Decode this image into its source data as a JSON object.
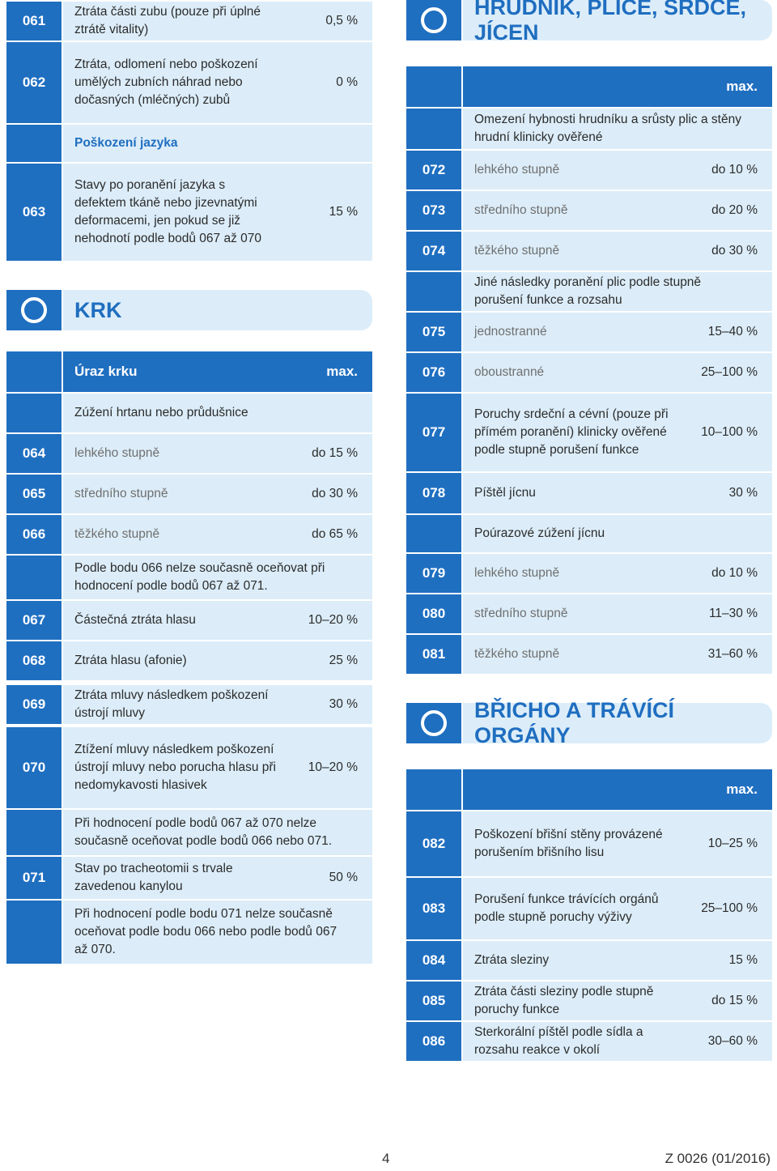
{
  "blocks": [
    {
      "rows": [
        {
          "code": "061",
          "text": "Ztráta části zubu (pouze při úplné ztrátě vitality)",
          "value": "0,5 %"
        },
        {
          "code": "062",
          "text": "Ztráta, odlomení nebo poškození umělých zubních náhrad nebo dočasných (mléčných) zubů",
          "value": "0 %"
        },
        {
          "text": "Poškození jazyka",
          "emphasis": true
        },
        {
          "code": "063",
          "text": "Stavy po poranění jazyka s defektem tkáně nebo jizevnatými deformacemi, jen pokud se již nehodnotí podle bodů 067 až 070",
          "value": "15 %"
        }
      ]
    },
    {
      "title": "KRK",
      "header": {
        "label": "Úraz krku",
        "max": "max."
      },
      "rows": [
        {
          "text": "Zúžení hrtanu nebo průdušnice"
        },
        {
          "code": "064",
          "text": "lehkého stupně",
          "value": "do 15 %",
          "muted": true
        },
        {
          "code": "065",
          "text": "středního stupně",
          "value": "do 30 %",
          "muted": true
        },
        {
          "code": "066",
          "text": "těžkého stupně",
          "value": "do 65 %",
          "muted": true
        },
        {
          "text": "Podle bodu 066 nelze současně oceňovat při hodnocení podle bodů 067 až 071."
        },
        {
          "code": "067",
          "text": "Částečná ztráta hlasu",
          "value": "10–20 %"
        },
        {
          "code": "068",
          "text": "Ztráta hlasu (afonie)",
          "value": "25 %"
        },
        {
          "code": "069",
          "text": "Ztráta mluvy následkem poškození ústrojí mluvy",
          "value": "30 %"
        },
        {
          "code": "070",
          "text": "Ztížení mluvy následkem poškození ústrojí mluvy nebo porucha hlasu při nedomykavosti hlasivek",
          "value": "10–20 %"
        },
        {
          "text": "Při hodnocení podle bodů 067 až 070 nelze současně oceňovat podle bodů 066 nebo 071."
        },
        {
          "code": "071",
          "text": "Stav po tracheotomii s trvale zavedenou kanylou",
          "value": "50 %"
        },
        {
          "text": "Při hodnocení podle bodu 071 nelze současně oceňovat podle bodu 066 nebo podle bodů 067 až 070."
        }
      ]
    },
    {
      "title": "HRUDNÍK, PLÍCE, SRDCE, JÍCEN",
      "header": {
        "max": "max."
      },
      "rows": [
        {
          "text": "Omezení hybnosti hrudníku a srůsty plic a stěny hrudní klinicky ověřené"
        },
        {
          "code": "072",
          "text": "lehkého stupně",
          "value": "do 10 %",
          "muted": true
        },
        {
          "code": "073",
          "text": "středního stupně",
          "value": "do 20 %",
          "muted": true
        },
        {
          "code": "074",
          "text": "těžkého stupně",
          "value": "do 30 %",
          "muted": true
        },
        {
          "text": "Jiné následky poranění plic podle stupně porušení funkce a rozsahu"
        },
        {
          "code": "075",
          "text": "jednostranné",
          "value": "15–40 %",
          "muted": true
        },
        {
          "code": "076",
          "text": "oboustranné",
          "value": "25–100 %",
          "muted": true
        },
        {
          "code": "077",
          "text": "Poruchy srdeční a cévní (pouze při přímém poranění) klinicky ověřené podle stupně porušení funkce",
          "value": "10–100 %"
        },
        {
          "code": "078",
          "text": "Píštěl jícnu",
          "value": "30 %"
        },
        {
          "text": "Poúrazové zúžení jícnu"
        },
        {
          "code": "079",
          "text": "lehkého stupně",
          "value": "do 10 %",
          "muted": true
        },
        {
          "code": "080",
          "text": "středního stupně",
          "value": "11–30 %",
          "muted": true
        },
        {
          "code": "081",
          "text": "těžkého stupně",
          "value": "31–60 %",
          "muted": true
        }
      ]
    },
    {
      "title": "BŘICHO A TRÁVÍCÍ ORGÁNY",
      "header": {
        "max": "max."
      },
      "rows": [
        {
          "code": "082",
          "text": "Poškození břišní stěny provázené porušením břišního lisu",
          "value": "10–25 %"
        },
        {
          "code": "083",
          "text": "Porušení funkce trávících orgánů podle stupně poruchy výživy",
          "value": "25–100 %"
        },
        {
          "code": "084",
          "text": "Ztráta sleziny",
          "value": "15 %"
        },
        {
          "code": "085",
          "text": "Ztráta části sleziny podle stupně poruchy funkce",
          "value": "do 15 %"
        },
        {
          "code": "086",
          "text": "Sterkorální píštěl podle sídla a rozsahu reakce v okolí",
          "value": "30–60 %"
        }
      ]
    }
  ],
  "footer": {
    "page": "4",
    "form": "Z 0026 (01/2016)"
  }
}
